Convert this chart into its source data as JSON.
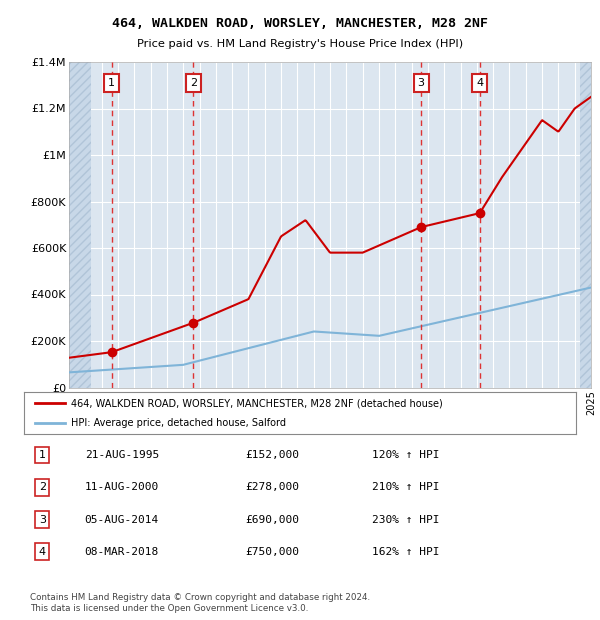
{
  "title": "464, WALKDEN ROAD, WORSLEY, MANCHESTER, M28 2NF",
  "subtitle": "Price paid vs. HM Land Registry's House Price Index (HPI)",
  "legend_line1": "464, WALKDEN ROAD, WORSLEY, MANCHESTER, M28 2NF (detached house)",
  "legend_line2": "HPI: Average price, detached house, Salford",
  "footer": "Contains HM Land Registry data © Crown copyright and database right 2024.\nThis data is licensed under the Open Government Licence v3.0.",
  "sale_points": [
    {
      "num": 1,
      "date": "21-AUG-1995",
      "price": 152000,
      "year": 1995.62
    },
    {
      "num": 2,
      "date": "11-AUG-2000",
      "price": 278000,
      "year": 2000.62
    },
    {
      "num": 3,
      "date": "05-AUG-2014",
      "price": 690000,
      "year": 2014.59
    },
    {
      "num": 4,
      "date": "08-MAR-2018",
      "price": 750000,
      "year": 2018.18
    }
  ],
  "table_rows": [
    [
      "1",
      "21-AUG-1995",
      "£152,000",
      "120% ↑ HPI"
    ],
    [
      "2",
      "11-AUG-2000",
      "£278,000",
      "210% ↑ HPI"
    ],
    [
      "3",
      "05-AUG-2014",
      "£690,000",
      "230% ↑ HPI"
    ],
    [
      "4",
      "08-MAR-2018",
      "£750,000",
      "162% ↑ HPI"
    ]
  ],
  "ylim": [
    0,
    1400000
  ],
  "xlim": [
    1993,
    2025
  ],
  "yticks": [
    0,
    200000,
    400000,
    600000,
    800000,
    1000000,
    1200000,
    1400000
  ],
  "ytick_labels": [
    "£0",
    "£200K",
    "£400K",
    "£600K",
    "£800K",
    "£1M",
    "£1.2M",
    "£1.4M"
  ],
  "xticks": [
    1993,
    1994,
    1995,
    1996,
    1997,
    1998,
    1999,
    2000,
    2001,
    2002,
    2003,
    2004,
    2005,
    2006,
    2007,
    2008,
    2009,
    2010,
    2011,
    2012,
    2013,
    2014,
    2015,
    2016,
    2017,
    2018,
    2019,
    2020,
    2021,
    2022,
    2023,
    2024,
    2025
  ],
  "bg_color": "#ffffff",
  "plot_bg_color": "#dce6f0",
  "grid_color": "#ffffff",
  "red_line_color": "#cc0000",
  "blue_line_color": "#7fb4d8",
  "sale_marker_color": "#cc0000",
  "vline_color": "#dd3333",
  "num_box_color": "#cc2222",
  "hpi_anchors_x": [
    1993,
    2000,
    2008,
    2012,
    2025
  ],
  "hpi_anchors_y": [
    65000,
    97500,
    241000,
    222000,
    430000
  ],
  "red_anchors_x": [
    1993,
    1995.62,
    2000.62,
    2004,
    2006,
    2007.5,
    2009,
    2011,
    2014.59,
    2018.18,
    2019.5,
    2021,
    2022,
    2023,
    2024,
    2025
  ],
  "red_anchors_y": [
    128000,
    152000,
    278000,
    380000,
    650000,
    720000,
    580000,
    580000,
    690000,
    750000,
    900000,
    1050000,
    1150000,
    1100000,
    1200000,
    1250000
  ]
}
